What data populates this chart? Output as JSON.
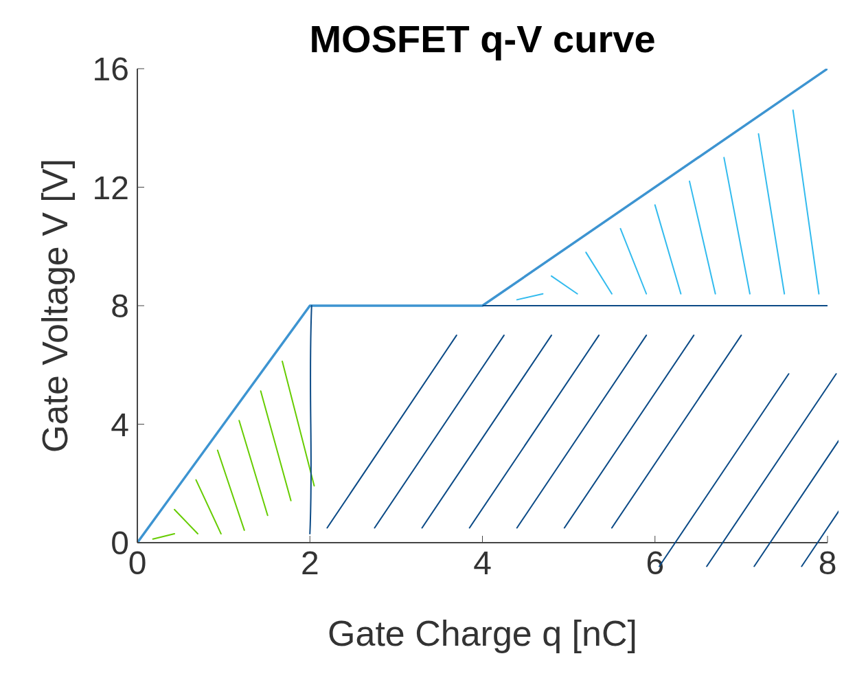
{
  "chart_data": {
    "type": "line",
    "title": "MOSFET q-V curve",
    "xlabel": "Gate Charge q [nC]",
    "ylabel": "Gate Voltage V [V]",
    "series": [
      {
        "color": "#3d94d1",
        "x": [
          0,
          2,
          4,
          8
        ],
        "values": [
          0,
          8,
          8,
          16
        ]
      },
      {
        "color": "#0b4a86",
        "x": [
          4,
          8
        ],
        "values": [
          8,
          8
        ]
      }
    ],
    "xlim": [
      0,
      8
    ],
    "ylim": [
      0,
      16
    ],
    "xticks": [
      0,
      2,
      4,
      6,
      8
    ],
    "yticks": [
      0,
      4,
      8,
      12,
      16
    ],
    "marker": "none",
    "line_style": "solid"
  }
}
